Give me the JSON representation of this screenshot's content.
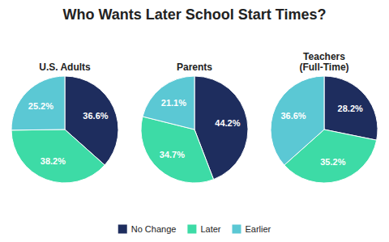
{
  "chart_data": {
    "type": "pie",
    "title": "Who Wants Later School Start Times?",
    "categories": [
      "No Change",
      "Later",
      "Earlier"
    ],
    "colors": [
      "#1e2d5e",
      "#3ddba6",
      "#5bc8d4"
    ],
    "series": [
      {
        "name": "U.S. Adults",
        "values": [
          36.6,
          38.2,
          25.2
        ],
        "value_labels": [
          "36.6%",
          "38.2%",
          "25.2%"
        ]
      },
      {
        "name": "Parents",
        "values": [
          44.2,
          34.7,
          21.1
        ],
        "value_labels": [
          "44.2%",
          "34.7%",
          "21.1%"
        ]
      },
      {
        "name": "Teachers\n(Full-Time)",
        "values": [
          28.2,
          35.2,
          36.6
        ],
        "value_labels": [
          "28.2%",
          "35.2%",
          "36.6%"
        ]
      }
    ],
    "data_labels": true,
    "legend": "bottom"
  }
}
